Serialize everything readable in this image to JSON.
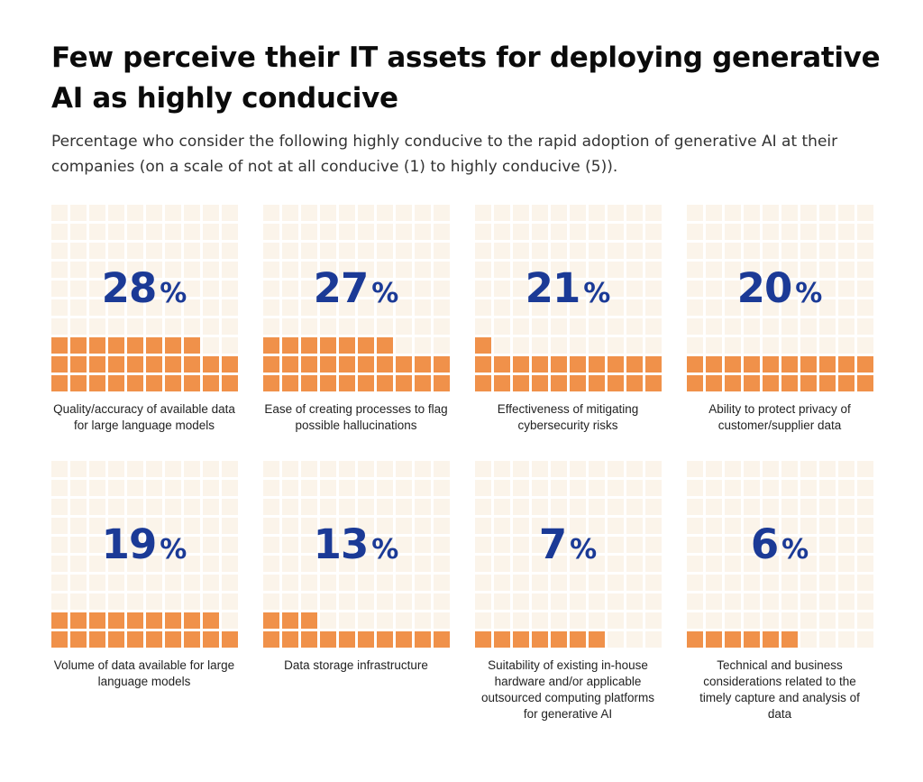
{
  "title": "Few perceive their IT assets for deploying generative AI as highly conducive",
  "subtitle": "Percentage who consider the following highly conducive to the rapid adoption of generative AI at their companies (on a scale of not at all conducive (1) to highly conducive (5)).",
  "colors": {
    "filled": "#f0914a",
    "empty": "#fbf4ea",
    "number": "#1b3a96"
  },
  "chart_data": {
    "type": "waffle",
    "title": "Few perceive their IT assets for deploying generative AI as highly conducive",
    "unit": "%",
    "grid_cells": 100,
    "categories": [
      "Quality/accuracy of available data for large language models",
      "Ease of creating processes to flag possible hallucinations",
      "Effectiveness of mitigating cybersecurity risks",
      "Ability to protect privacy of customer/supplier data",
      "Volume of data available for large language models",
      "Data storage infrastructure",
      "Suitability of existing in-house hardware and/or applicable outsourced computing platforms for generative AI",
      "Technical and business considerations related to the timely capture and analysis of data"
    ],
    "values": [
      28,
      27,
      21,
      20,
      19,
      13,
      7,
      6
    ]
  },
  "panels": [
    {
      "value": "28",
      "symbol": "%",
      "label": "Quality/accuracy of available data for large language models"
    },
    {
      "value": "27",
      "symbol": "%",
      "label": "Ease of creating processes to flag possible hallucinations"
    },
    {
      "value": "21",
      "symbol": "%",
      "label": "Effectiveness of mitigating cybersecurity risks"
    },
    {
      "value": "20",
      "symbol": "%",
      "label": "Ability to protect privacy of customer/supplier data"
    },
    {
      "value": "19",
      "symbol": "%",
      "label": "Volume of data available for large language models"
    },
    {
      "value": "13",
      "symbol": "%",
      "label": "Data storage infrastructure"
    },
    {
      "value": "7",
      "symbol": "%",
      "label": "Suitability of existing in-house hardware and/or applicable outsourced computing platforms for generative AI"
    },
    {
      "value": "6",
      "symbol": "%",
      "label": "Technical and business considerations related to the timely capture and analysis of data"
    }
  ]
}
